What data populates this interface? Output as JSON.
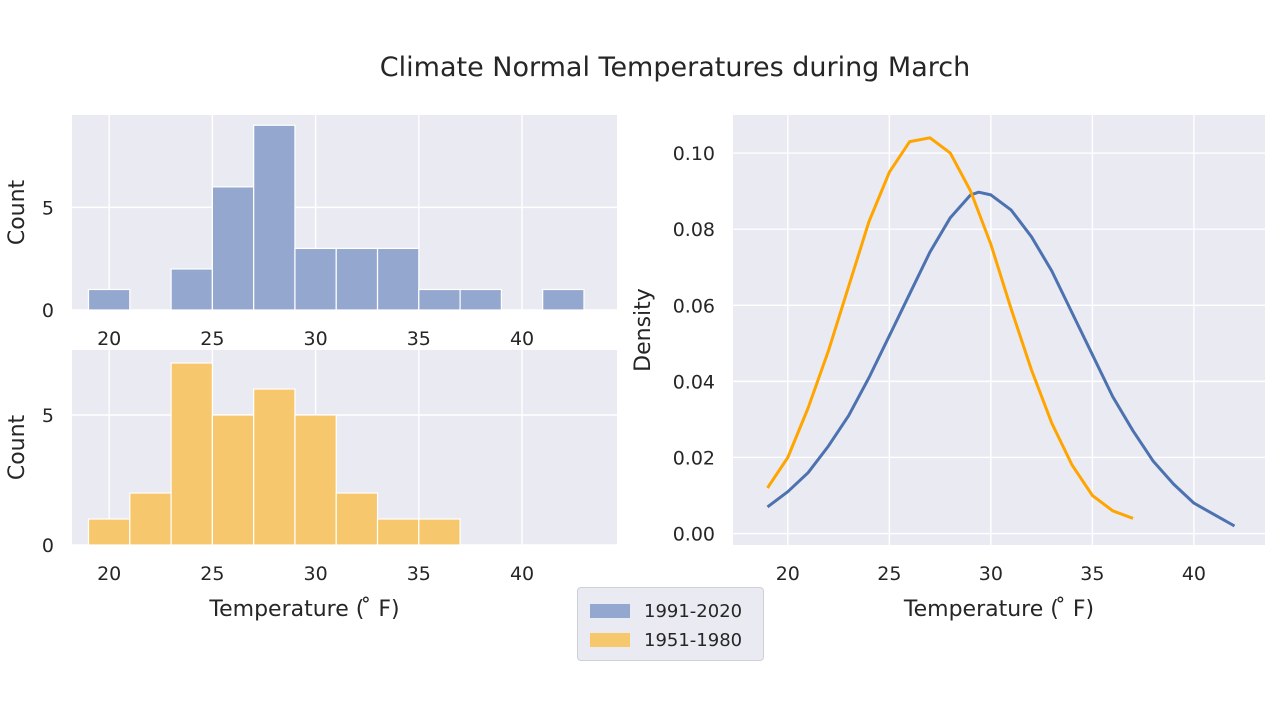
{
  "title": "Climate Normal Temperatures during March",
  "colors": {
    "blue": "#4c72b0",
    "orange": "#ffa500",
    "hist_blue": "#94a8cf",
    "hist_orange": "#f6c76d",
    "panel_bg": "#eaeaf2",
    "grid": "#ffffff"
  },
  "legend": {
    "items": [
      {
        "label": "1991-2020",
        "color": "#94a8cf"
      },
      {
        "label": "1951-1980",
        "color": "#f6c76d"
      }
    ]
  },
  "chart_data": [
    {
      "type": "bar",
      "title": "",
      "xlabel": "",
      "ylabel": "Count",
      "x_ticks": [
        20,
        25,
        30,
        35,
        40
      ],
      "y_ticks": [
        0,
        5
      ],
      "xlim": [
        18.2,
        44.6
      ],
      "ylim": [
        0,
        9.5
      ],
      "grid": true,
      "series": [
        {
          "name": "1991-2020",
          "bins": [
            [
              19,
              21
            ],
            [
              23,
              25
            ],
            [
              25,
              27
            ],
            [
              27,
              29
            ],
            [
              29,
              31
            ],
            [
              31,
              33
            ],
            [
              33,
              35
            ],
            [
              35,
              37
            ],
            [
              37,
              39
            ],
            [
              41,
              43
            ]
          ],
          "values": [
            1,
            2,
            6,
            9,
            3,
            3,
            3,
            1,
            1,
            1
          ]
        }
      ]
    },
    {
      "type": "bar",
      "title": "",
      "xlabel": "Temperature ($^\\circ$F)",
      "xlabel_display": "Temperature ( ̊ F)",
      "ylabel": "Count",
      "x_ticks": [
        20,
        25,
        30,
        35,
        40
      ],
      "y_ticks": [
        0,
        5
      ],
      "xlim": [
        18.2,
        44.6
      ],
      "ylim": [
        0,
        7.5
      ],
      "grid": true,
      "series": [
        {
          "name": "1951-1980",
          "bins": [
            [
              19,
              21
            ],
            [
              21,
              23
            ],
            [
              23,
              25
            ],
            [
              25,
              27
            ],
            [
              27,
              29
            ],
            [
              29,
              31
            ],
            [
              31,
              33
            ],
            [
              33,
              35
            ],
            [
              35,
              37
            ]
          ],
          "values": [
            1,
            2,
            7,
            5,
            6,
            5,
            2,
            1,
            1
          ]
        }
      ]
    },
    {
      "type": "line",
      "title": "",
      "xlabel": "Temperature ( ̊ F)",
      "ylabel": "Density",
      "x_ticks": [
        20,
        25,
        30,
        35,
        40
      ],
      "y_ticks": [
        0.0,
        0.02,
        0.04,
        0.06,
        0.08,
        0.1
      ],
      "y_tick_labels": [
        "0.00",
        "0.02",
        "0.04",
        "0.06",
        "0.08",
        "0.10"
      ],
      "xlim": [
        17.3,
        43.5
      ],
      "ylim": [
        -0.003,
        0.11
      ],
      "grid": true,
      "series": [
        {
          "name": "1991-2020",
          "color": "#4c72b0",
          "x": [
            19,
            20,
            21,
            22,
            23,
            24,
            25,
            26,
            27,
            28,
            29,
            29.4,
            30,
            31,
            32,
            33,
            34,
            35,
            36,
            37,
            38,
            39,
            40,
            41,
            42
          ],
          "y": [
            0.007,
            0.011,
            0.016,
            0.023,
            0.031,
            0.041,
            0.052,
            0.063,
            0.074,
            0.083,
            0.089,
            0.0897,
            0.089,
            0.085,
            0.078,
            0.069,
            0.058,
            0.047,
            0.036,
            0.027,
            0.019,
            0.013,
            0.008,
            0.005,
            0.002
          ]
        },
        {
          "name": "1951-1980",
          "color": "#ffa500",
          "x": [
            19,
            20,
            21,
            22,
            23,
            24,
            25,
            26,
            27,
            28,
            29,
            30,
            31,
            32,
            33,
            34,
            35,
            36,
            37
          ],
          "y": [
            0.012,
            0.02,
            0.033,
            0.048,
            0.065,
            0.082,
            0.095,
            0.103,
            0.104,
            0.1,
            0.09,
            0.076,
            0.059,
            0.043,
            0.029,
            0.018,
            0.01,
            0.006,
            0.004
          ]
        }
      ]
    }
  ]
}
